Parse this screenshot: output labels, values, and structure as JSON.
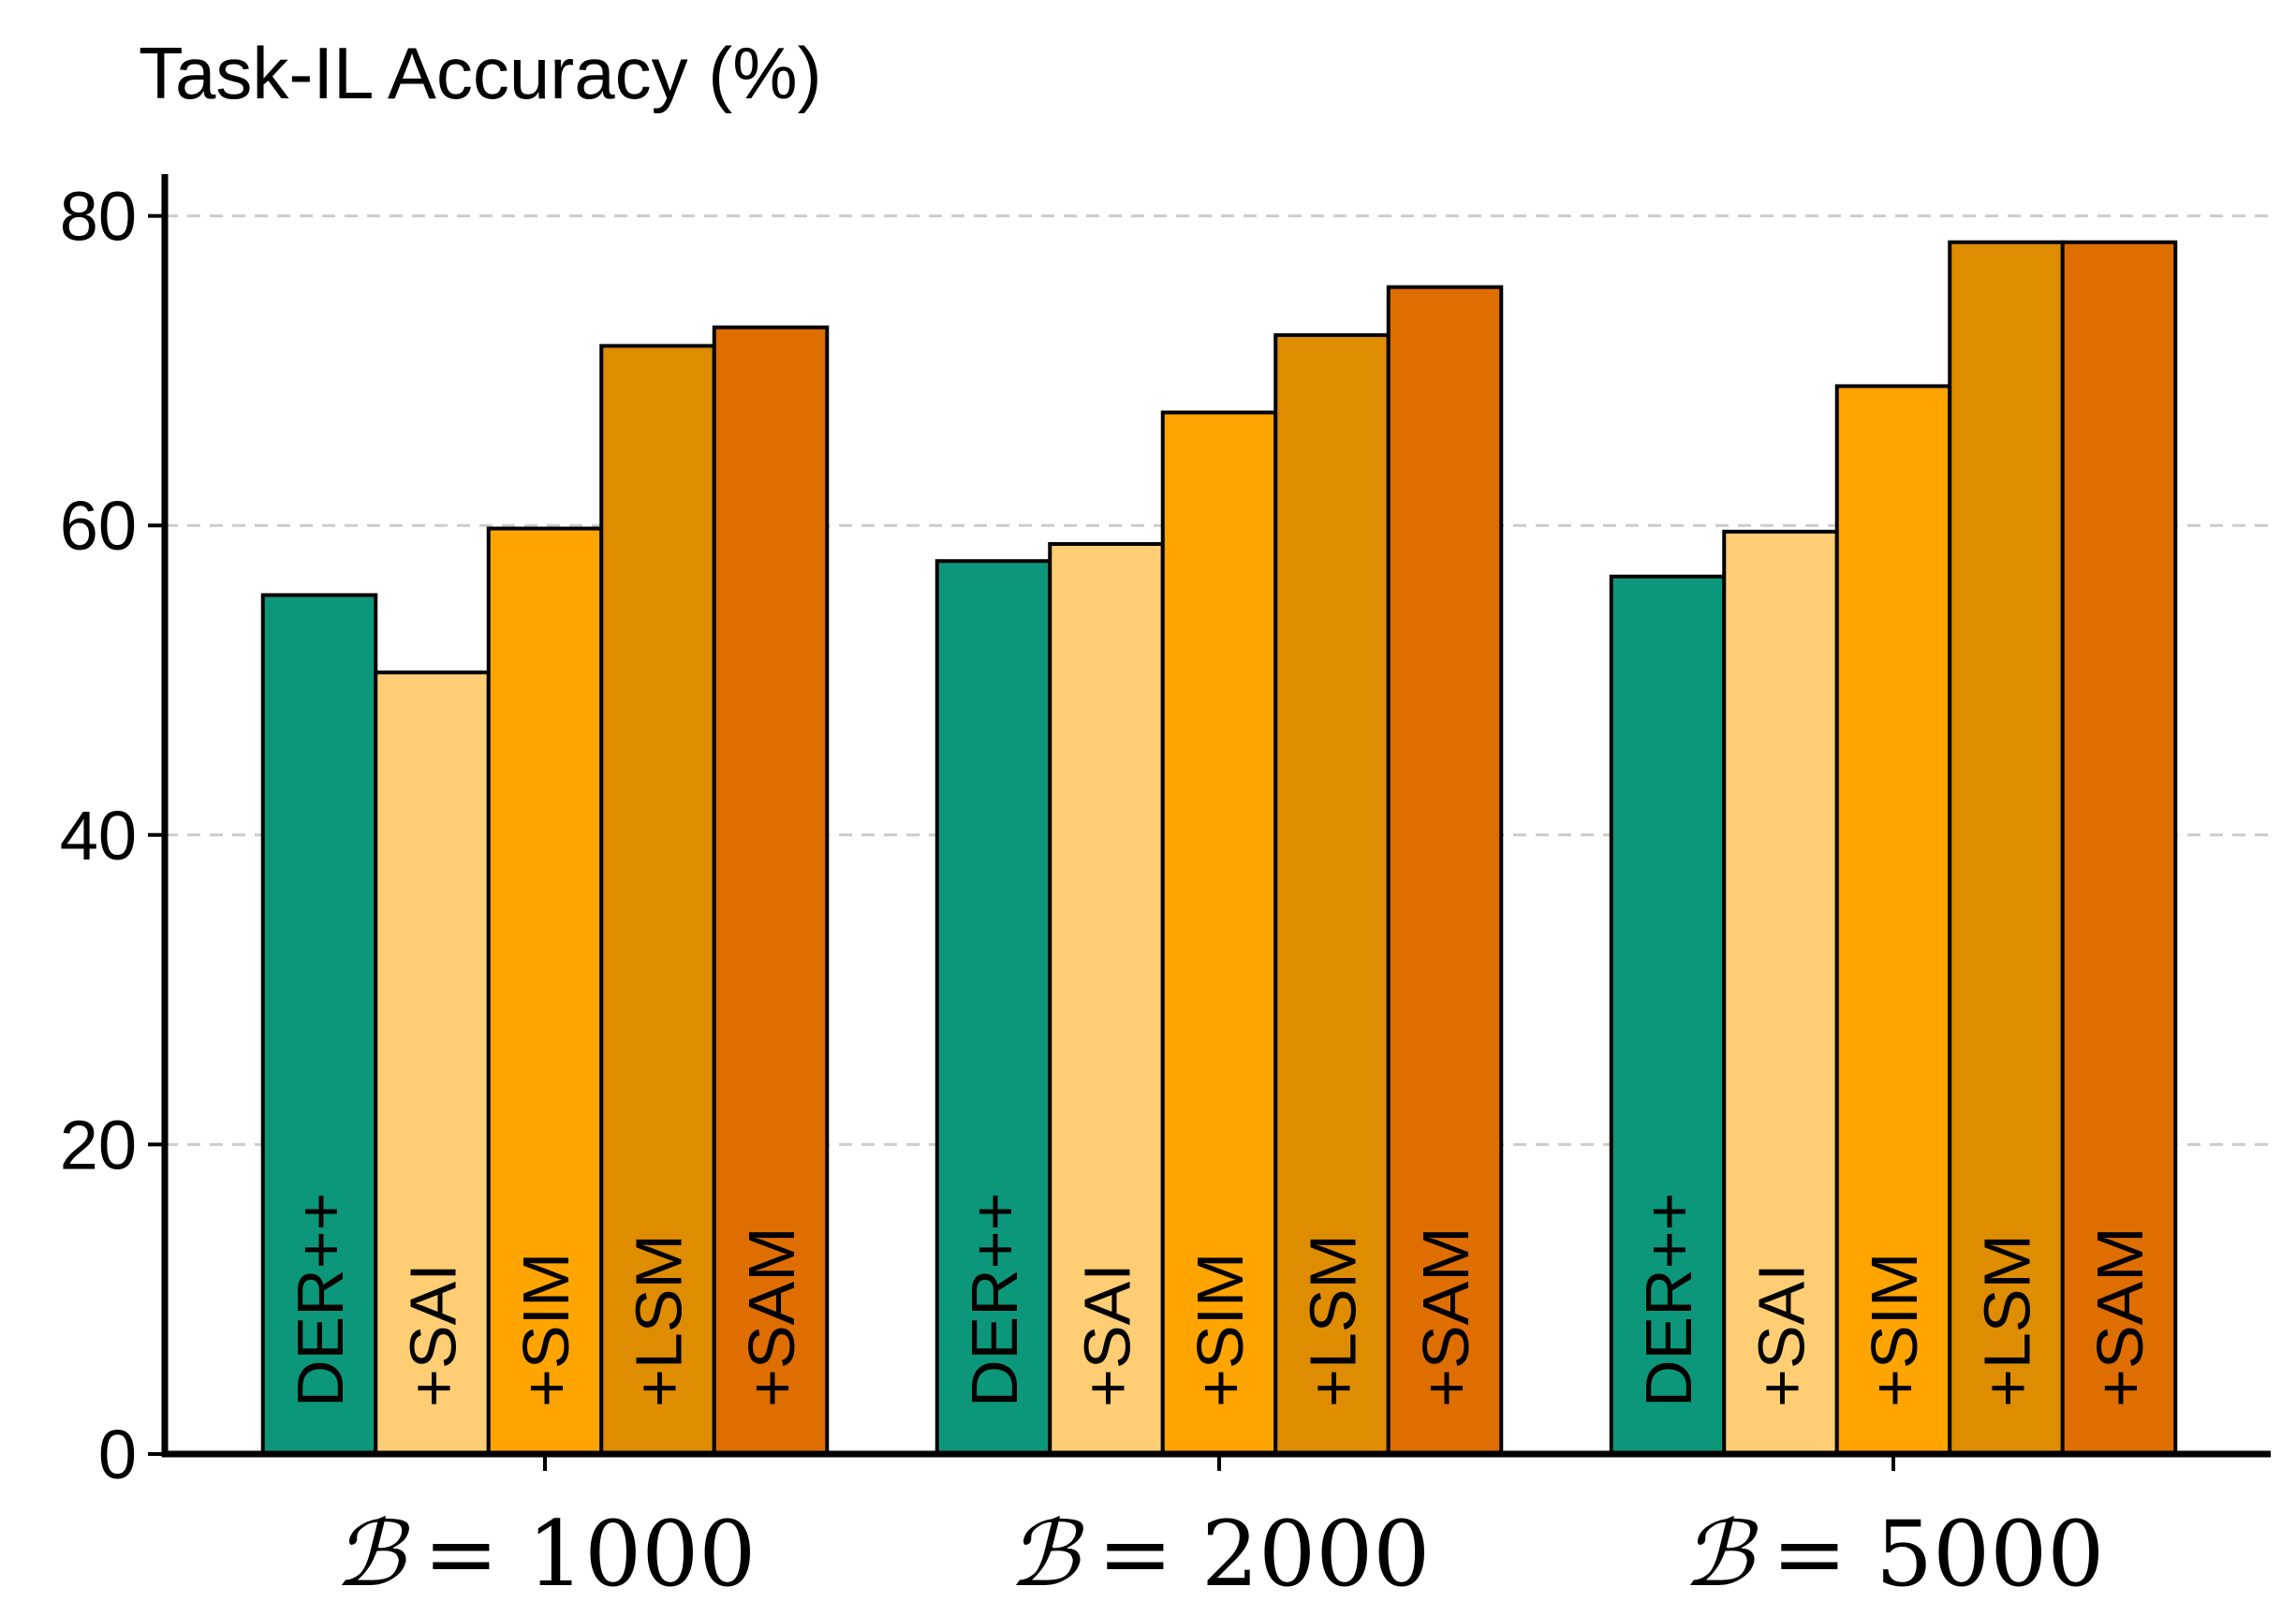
{
  "chart_data": {
    "type": "bar",
    "title": "Task-IL Accuracy (%)",
    "xlabel": "",
    "ylabel": "",
    "ylim": [
      0,
      82.5
    ],
    "yticks": [
      0,
      20,
      40,
      60,
      80
    ],
    "grid": true,
    "legend": "none (labels inside bars)",
    "category_symbol": "ℬ",
    "categories": [
      "= 1000",
      "= 2000",
      "= 5000"
    ],
    "series": [
      {
        "name": "DER++",
        "color": "#0d977a",
        "values": [
          55.5,
          57.7,
          56.7
        ]
      },
      {
        "name": "+SAI",
        "color": "#ffcd73",
        "values": [
          50.5,
          58.8,
          59.6
        ]
      },
      {
        "name": "+SIM",
        "color": "#ffa400",
        "values": [
          59.8,
          67.3,
          69.0
        ]
      },
      {
        "name": "+LSM",
        "color": "#de8d00",
        "values": [
          71.6,
          72.3,
          78.3
        ]
      },
      {
        "name": "+SAM",
        "color": "#df6e00",
        "values": [
          72.8,
          75.4,
          78.3
        ]
      }
    ]
  }
}
